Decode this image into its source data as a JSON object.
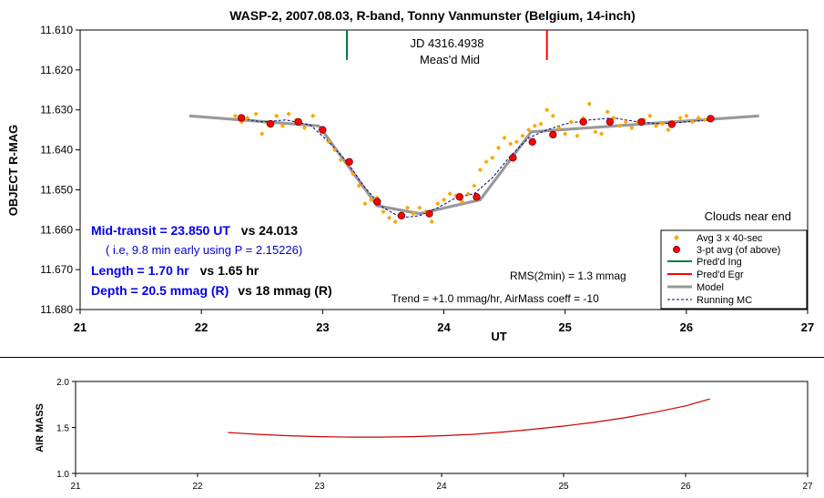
{
  "chart_data": [
    {
      "type": "scatter",
      "title": "WASP-2, 2007.08.03, R-band, Tonny Vanmunster (Belgium, 14-inch)",
      "xlabel": "UT",
      "ylabel": "OBJECT R-MAG",
      "xlim": [
        21,
        27
      ],
      "ylim": [
        11.61,
        11.68
      ],
      "y_inverted": true,
      "grid": false,
      "legend_position": "bottom-right",
      "x_ticks": [
        "21",
        "22",
        "23",
        "24",
        "25",
        "26",
        "27"
      ],
      "y_ticks": [
        "11.610",
        "11.620",
        "11.630",
        "11.640",
        "11.650",
        "11.660",
        "11.670",
        "11.680"
      ],
      "series": [
        {
          "name": "Avg 3 x 40-sec",
          "marker": "diamond",
          "color": "#ffa500",
          "x": [
            22.28,
            22.33,
            22.38,
            22.45,
            22.5,
            22.55,
            22.62,
            22.67,
            22.72,
            22.78,
            22.85,
            22.92,
            22.98,
            23.05,
            23.1,
            23.15,
            23.2,
            23.25,
            23.3,
            23.35,
            23.4,
            23.45,
            23.5,
            23.55,
            23.6,
            23.65,
            23.7,
            23.75,
            23.8,
            23.85,
            23.9,
            23.95,
            24.0,
            24.05,
            24.1,
            24.15,
            24.2,
            24.25,
            24.3,
            24.35,
            24.4,
            24.45,
            24.5,
            24.55,
            24.6,
            24.65,
            24.7,
            24.75,
            24.8,
            24.85,
            24.9,
            24.95,
            25.0,
            25.05,
            25.1,
            25.15,
            25.2,
            25.25,
            25.3,
            25.35,
            25.4,
            25.45,
            25.5,
            25.55,
            25.6,
            25.65,
            25.7,
            25.75,
            25.8,
            25.85,
            25.9,
            25.95,
            26.0,
            26.05,
            26.1,
            26.15,
            26.2
          ],
          "y": [
            11.6315,
            11.633,
            11.632,
            11.631,
            11.636,
            11.6335,
            11.6315,
            11.634,
            11.631,
            11.6325,
            11.6345,
            11.6315,
            11.635,
            11.638,
            11.64,
            11.6425,
            11.6435,
            11.646,
            11.649,
            11.6535,
            11.6525,
            11.652,
            11.6555,
            11.657,
            11.658,
            11.656,
            11.6545,
            11.656,
            11.6545,
            11.6555,
            11.658,
            11.6535,
            11.6525,
            11.651,
            11.6515,
            11.653,
            11.651,
            11.649,
            11.645,
            11.643,
            11.642,
            11.6395,
            11.637,
            11.6385,
            11.638,
            11.6365,
            11.635,
            11.634,
            11.6335,
            11.63,
            11.6315,
            11.6345,
            11.636,
            11.633,
            11.6365,
            11.632,
            11.6285,
            11.6355,
            11.636,
            11.6305,
            11.632,
            11.634,
            11.633,
            11.6345,
            11.633,
            11.6325,
            11.6315,
            11.634,
            11.6335,
            11.635,
            11.633,
            11.632,
            11.6315,
            11.633,
            11.632,
            11.6325,
            11.6325
          ]
        },
        {
          "name": "3-pt avg (of above)",
          "marker": "circle",
          "color": "#ff0000",
          "x": [
            22.33,
            22.57,
            22.8,
            23.0,
            23.22,
            23.45,
            23.65,
            23.88,
            24.13,
            24.27,
            24.57,
            24.73,
            24.9,
            25.15,
            25.37,
            25.63,
            25.88,
            26.2
          ],
          "y": [
            11.632,
            11.6335,
            11.633,
            11.635,
            11.643,
            11.653,
            11.6565,
            11.656,
            11.6518,
            11.6518,
            11.642,
            11.638,
            11.6362,
            11.633,
            11.633,
            11.633,
            11.6336,
            11.6322
          ]
        },
        {
          "name": "Pred'd Ing",
          "type": "line",
          "color": "#008040",
          "x": [
            23.2,
            23.2
          ],
          "y": [
            11.61,
            11.6175
          ]
        },
        {
          "name": "Pred'd Egr",
          "type": "line",
          "color": "#ff0000",
          "x": [
            24.85,
            24.85
          ],
          "y": [
            11.61,
            11.6175
          ]
        },
        {
          "name": "Model",
          "type": "line",
          "color": "#999999",
          "x": [
            21.9,
            22.97,
            23.45,
            23.8,
            24.3,
            24.72,
            26.6
          ],
          "y": [
            11.6315,
            11.634,
            11.654,
            11.656,
            11.6525,
            11.6355,
            11.6315
          ]
        },
        {
          "name": "Running MC",
          "type": "line",
          "style": "dashed",
          "color": "#000080",
          "x": [
            22.3,
            22.5,
            22.7,
            22.9,
            23.05,
            23.2,
            23.35,
            23.5,
            23.65,
            23.8,
            23.95,
            24.1,
            24.25,
            24.4,
            24.55,
            24.7,
            24.85,
            25.0,
            25.2,
            25.4,
            25.6,
            25.8,
            26.0,
            26.2
          ],
          "y": [
            11.632,
            11.633,
            11.6325,
            11.6338,
            11.638,
            11.643,
            11.6495,
            11.6545,
            11.657,
            11.6565,
            11.6545,
            11.652,
            11.651,
            11.647,
            11.6415,
            11.637,
            11.635,
            11.6335,
            11.6325,
            11.632,
            11.633,
            11.6335,
            11.633,
            11.6325
          ]
        }
      ],
      "annotations": {
        "jd": "JD 4316.4938",
        "measd_mid": "Meas'd Mid",
        "clouds": "Clouds near end",
        "rms": "RMS(2min) = 1.3 mmag",
        "trend": "Trend = +1.0 mmag/hr, AirMass coeff = -10",
        "mid_transit": "Mid-transit = 23.850 UT",
        "mid_transit_vs": "vs 24.013",
        "early_note": "( i.e, 9.8 min early using P = 2.15226)",
        "length": "Length = 1.70 hr",
        "length_vs": "vs 1.65 hr",
        "depth": "Depth = 20.5 mmag (R)",
        "depth_vs": "vs 18 mmag (R)"
      }
    },
    {
      "type": "line",
      "ylabel": "AIR MASS",
      "xlim": [
        21,
        27
      ],
      "ylim": [
        1.0,
        2.0
      ],
      "grid": false,
      "x_ticks": [
        "21",
        "22",
        "23",
        "24",
        "25",
        "26",
        "27"
      ],
      "y_ticks": [
        "1.0",
        "1.5",
        "2.0"
      ],
      "series": [
        {
          "color": "#cc0000",
          "x": [
            22.25,
            22.5,
            22.75,
            23.0,
            23.25,
            23.5,
            23.75,
            24.0,
            24.25,
            24.5,
            24.75,
            25.0,
            25.25,
            25.5,
            25.75,
            26.0,
            26.2
          ],
          "y": [
            1.445,
            1.425,
            1.41,
            1.4,
            1.395,
            1.395,
            1.4,
            1.41,
            1.425,
            1.45,
            1.48,
            1.515,
            1.555,
            1.605,
            1.665,
            1.735,
            1.81
          ]
        }
      ]
    }
  ]
}
